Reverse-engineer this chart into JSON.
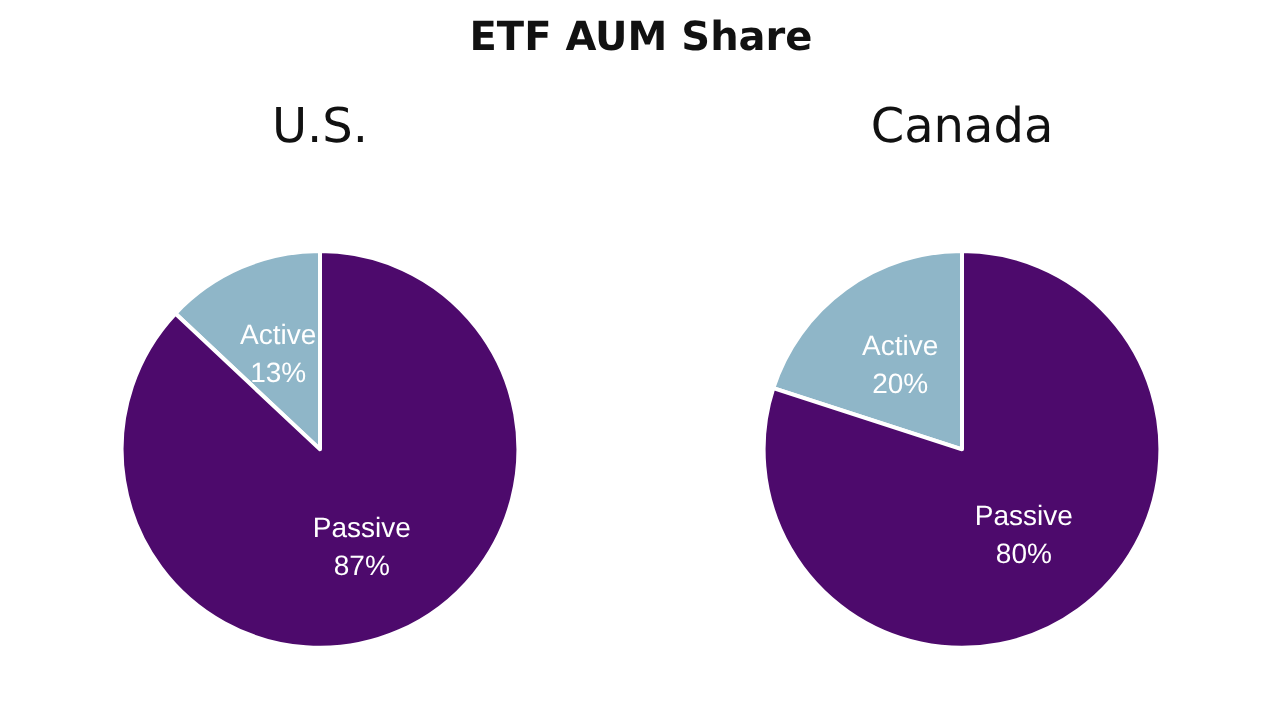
{
  "chart_data": [
    {
      "type": "pie",
      "title": "ETF AUM Share",
      "subtitle": "U.S.",
      "categories": [
        "Active",
        "Passive"
      ],
      "values": [
        13,
        87
      ],
      "colors": [
        "#8fb6c8",
        "#4d0a6c"
      ],
      "value_labels": [
        "13%",
        "87%"
      ]
    },
    {
      "type": "pie",
      "subtitle": "Canada",
      "categories": [
        "Active",
        "Passive"
      ],
      "values": [
        20,
        80
      ],
      "colors": [
        "#8fb6c8",
        "#4d0a6c"
      ],
      "value_labels": [
        "20%",
        "80%"
      ]
    }
  ]
}
